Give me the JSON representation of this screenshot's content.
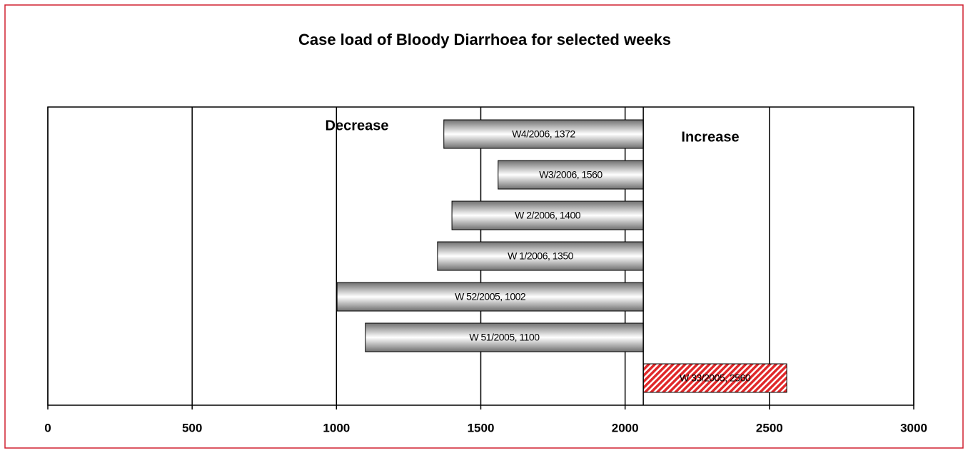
{
  "chart_data": {
    "type": "bar",
    "orientation": "horizontal",
    "title": "Case load of Bloody Diarrhoea for selected weeks",
    "annotations": [
      "Decrease",
      "Increase"
    ],
    "baseline": 2063,
    "values": [
      1372,
      1560,
      1400,
      1350,
      1002,
      1100,
      2560
    ],
    "value_labels": [
      "W4/2006, 1372",
      "W3/2006, 1560",
      "W 2/2006, 1400",
      "W 1/2006, 1350",
      "W 52/2005, 1002",
      "W 51/2005, 1100",
      "W 33/2005, 2560"
    ],
    "colors": [
      "#707070",
      "#707070",
      "#707070",
      "#707070",
      "#707070",
      "#707070",
      "#e0282a"
    ],
    "fills": [
      "gradient",
      "gradient",
      "gradient",
      "gradient",
      "gradient",
      "gradient",
      "hatch"
    ],
    "xlim": [
      0,
      3000
    ],
    "xticks": [
      0,
      500,
      1000,
      1500,
      2000,
      2500,
      3000
    ],
    "grid": true
  }
}
